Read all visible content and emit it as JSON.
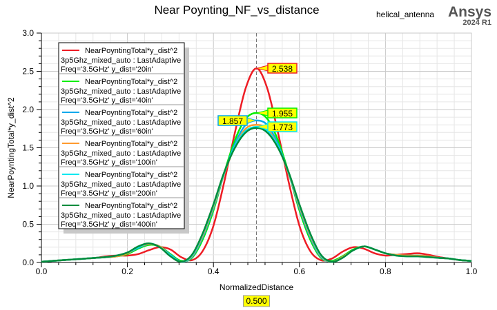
{
  "header": {
    "title": "Near Poynting_NF_vs_distance",
    "project": "helical_antenna",
    "logo_text": "Ansys",
    "logo_version": "2024 R1"
  },
  "chart_data": {
    "type": "line",
    "title": "Near Poynting_NF_vs_distance",
    "xlabel": "NormalizedDistance",
    "ylabel": "NearPoyntingTotal*y_dist^2",
    "xlim": [
      0,
      1
    ],
    "ylim": [
      0,
      3
    ],
    "x_ticks": [
      "0.0",
      "0.2",
      "0.4",
      "0.6",
      "0.8",
      "1.0"
    ],
    "y_ticks": [
      "0.0",
      "0.5",
      "1.0",
      "1.5",
      "2.0",
      "2.5",
      "3.0"
    ],
    "grid": true,
    "legend_position": "top-left",
    "cursor": {
      "x": 0.5,
      "label": "0.500"
    },
    "x": [
      0,
      0.025,
      0.05,
      0.075,
      0.1,
      0.125,
      0.15,
      0.175,
      0.2,
      0.225,
      0.25,
      0.275,
      0.3,
      0.325,
      0.35,
      0.375,
      0.4,
      0.425,
      0.45,
      0.475,
      0.5,
      0.525,
      0.55,
      0.575,
      0.6,
      0.625,
      0.65,
      0.675,
      0.7,
      0.725,
      0.75,
      0.775,
      0.8,
      0.825,
      0.85,
      0.875,
      0.9,
      0.925,
      0.95,
      0.975,
      1
    ],
    "series": [
      {
        "name": "NearPoyntingTotal*y_dist^2",
        "setup": "3p5Ghz_mixed_auto : LastAdaptive",
        "variation": "Freq='3.5GHz' y_dist='20in'",
        "color": "#ee1c24",
        "marker": {
          "x": 0.5,
          "label": "2.538"
        },
        "values": [
          0.01,
          0.02,
          0.03,
          0.04,
          0.05,
          0.06,
          0.08,
          0.09,
          0.09,
          0.11,
          0.16,
          0.2,
          0.17,
          0.07,
          0.03,
          0.15,
          0.48,
          1.05,
          1.7,
          2.28,
          2.538,
          2.28,
          1.7,
          1.05,
          0.48,
          0.15,
          0.03,
          0.05,
          0.14,
          0.2,
          0.18,
          0.12,
          0.09,
          0.1,
          0.11,
          0.12,
          0.1,
          0.07,
          0.05,
          0.03,
          0.02
        ]
      },
      {
        "name": "NearPoyntingTotal*y_dist^2",
        "setup": "3p5Ghz_mixed_auto : LastAdaptive",
        "variation": "Freq='3.5GHz' y_dist='40in'",
        "color": "#00ee00",
        "marker": {
          "x": 0.5,
          "label": "1.955"
        },
        "values": [
          0.01,
          0.02,
          0.03,
          0.04,
          0.05,
          0.06,
          0.07,
          0.08,
          0.11,
          0.18,
          0.23,
          0.21,
          0.11,
          0.02,
          0.06,
          0.3,
          0.68,
          1.17,
          1.6,
          1.88,
          1.955,
          1.88,
          1.6,
          1.17,
          0.68,
          0.3,
          0.06,
          0.02,
          0.08,
          0.17,
          0.21,
          0.17,
          0.12,
          0.1,
          0.09,
          0.09,
          0.08,
          0.06,
          0.05,
          0.03,
          0.02
        ]
      },
      {
        "name": "NearPoyntingTotal*y_dist^2",
        "setup": "3p5Ghz_mixed_auto : LastAdaptive",
        "variation": "Freq='3.5GHz' y_dist='60in'",
        "color": "#00a8ec",
        "marker": {
          "x": 0.5,
          "label": "1.857"
        },
        "values": [
          0.01,
          0.02,
          0.03,
          0.04,
          0.05,
          0.06,
          0.07,
          0.08,
          0.12,
          0.19,
          0.24,
          0.21,
          0.1,
          0.01,
          0.07,
          0.33,
          0.71,
          1.16,
          1.55,
          1.8,
          1.857,
          1.8,
          1.55,
          1.16,
          0.71,
          0.33,
          0.07,
          0.01,
          0.07,
          0.16,
          0.21,
          0.17,
          0.12,
          0.1,
          0.09,
          0.09,
          0.08,
          0.06,
          0.05,
          0.03,
          0.02
        ]
      },
      {
        "name": "NearPoyntingTotal*y_dist^2",
        "setup": "3p5Ghz_mixed_auto : LastAdaptive",
        "variation": "Freq='3.5GHz' y_dist='100in'",
        "color": "#ff9a2e",
        "values": [
          0.01,
          0.02,
          0.03,
          0.04,
          0.05,
          0.06,
          0.07,
          0.08,
          0.12,
          0.2,
          0.24,
          0.21,
          0.09,
          0.01,
          0.08,
          0.35,
          0.73,
          1.16,
          1.52,
          1.75,
          1.8,
          1.75,
          1.52,
          1.16,
          0.73,
          0.35,
          0.08,
          0.01,
          0.07,
          0.16,
          0.21,
          0.17,
          0.12,
          0.1,
          0.09,
          0.09,
          0.08,
          0.06,
          0.05,
          0.03,
          0.02
        ]
      },
      {
        "name": "NearPoyntingTotal*y_dist^2",
        "setup": "3p5Ghz_mixed_auto : LastAdaptive",
        "variation": "Freq='3.5GHz' y_dist='200in'",
        "color": "#00e8f0",
        "marker": {
          "x": 0.5,
          "label": "1.773"
        },
        "values": [
          0.01,
          0.02,
          0.03,
          0.04,
          0.05,
          0.06,
          0.07,
          0.09,
          0.13,
          0.2,
          0.25,
          0.2,
          0.09,
          0.01,
          0.09,
          0.37,
          0.75,
          1.17,
          1.52,
          1.72,
          1.773,
          1.72,
          1.52,
          1.17,
          0.75,
          0.37,
          0.09,
          0.01,
          0.06,
          0.16,
          0.21,
          0.17,
          0.12,
          0.09,
          0.08,
          0.08,
          0.07,
          0.06,
          0.05,
          0.03,
          0.02
        ]
      },
      {
        "name": "NearPoyntingTotal*y_dist^2",
        "setup": "3p5Ghz_mixed_auto : LastAdaptive",
        "variation": "Freq='3.5GHz' y_dist='400in'",
        "color": "#008c3c",
        "values": [
          0.01,
          0.02,
          0.03,
          0.04,
          0.05,
          0.06,
          0.07,
          0.09,
          0.13,
          0.21,
          0.25,
          0.2,
          0.08,
          0.01,
          0.1,
          0.38,
          0.76,
          1.18,
          1.5,
          1.7,
          1.76,
          1.7,
          1.5,
          1.18,
          0.76,
          0.38,
          0.1,
          0.01,
          0.06,
          0.16,
          0.21,
          0.17,
          0.12,
          0.09,
          0.08,
          0.08,
          0.07,
          0.06,
          0.05,
          0.03,
          0.02
        ]
      }
    ]
  }
}
